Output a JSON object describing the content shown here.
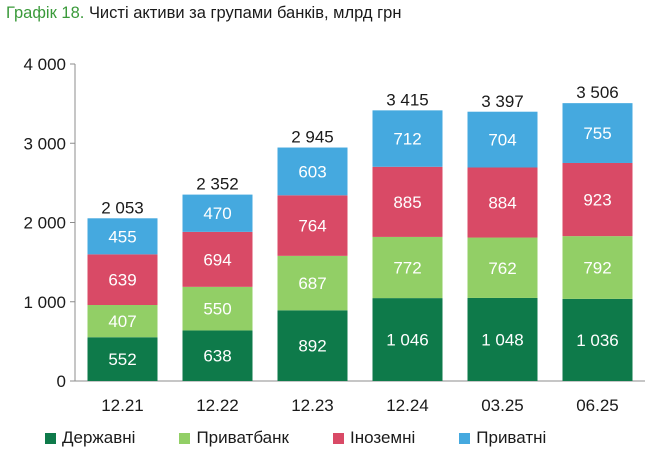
{
  "header": {
    "label": "Графік 18.",
    "text": "Чисті активи за групами банків, млрд грн"
  },
  "chart_data": {
    "type": "bar",
    "stacked": true,
    "categories": [
      "12.21",
      "12.22",
      "12.23",
      "12.24",
      "03.25",
      "06.25"
    ],
    "series": [
      {
        "name": "Державні",
        "color": "#0e7a4a",
        "values": [
          552,
          638,
          892,
          1046,
          1048,
          1036
        ],
        "labels": [
          "552",
          "638",
          "892",
          "1 046",
          "1 048",
          "1 036"
        ]
      },
      {
        "name": "Приватбанк",
        "color": "#92cf66",
        "values": [
          407,
          550,
          687,
          772,
          762,
          792
        ],
        "labels": [
          "407",
          "550",
          "687",
          "772",
          "762",
          "792"
        ]
      },
      {
        "name": "Іноземні",
        "color": "#d94a66",
        "values": [
          639,
          694,
          764,
          885,
          884,
          923
        ],
        "labels": [
          "639",
          "694",
          "764",
          "885",
          "884",
          "923"
        ]
      },
      {
        "name": "Приватні",
        "color": "#45a9df",
        "values": [
          455,
          470,
          603,
          712,
          704,
          755
        ],
        "labels": [
          "455",
          "470",
          "603",
          "712",
          "704",
          "755"
        ]
      }
    ],
    "totals": [
      2053,
      2352,
      2945,
      3415,
      3397,
      3506
    ],
    "total_labels": [
      "2 053",
      "2 352",
      "2 945",
      "3 415",
      "3 397",
      "3 506"
    ],
    "ylim": [
      0,
      4000
    ],
    "yticks": [
      0,
      1000,
      2000,
      3000,
      4000
    ],
    "ytick_labels": [
      "0",
      "1 000",
      "2 000",
      "3 000",
      "4 000"
    ],
    "grid": false,
    "legend_position": "bottom"
  }
}
